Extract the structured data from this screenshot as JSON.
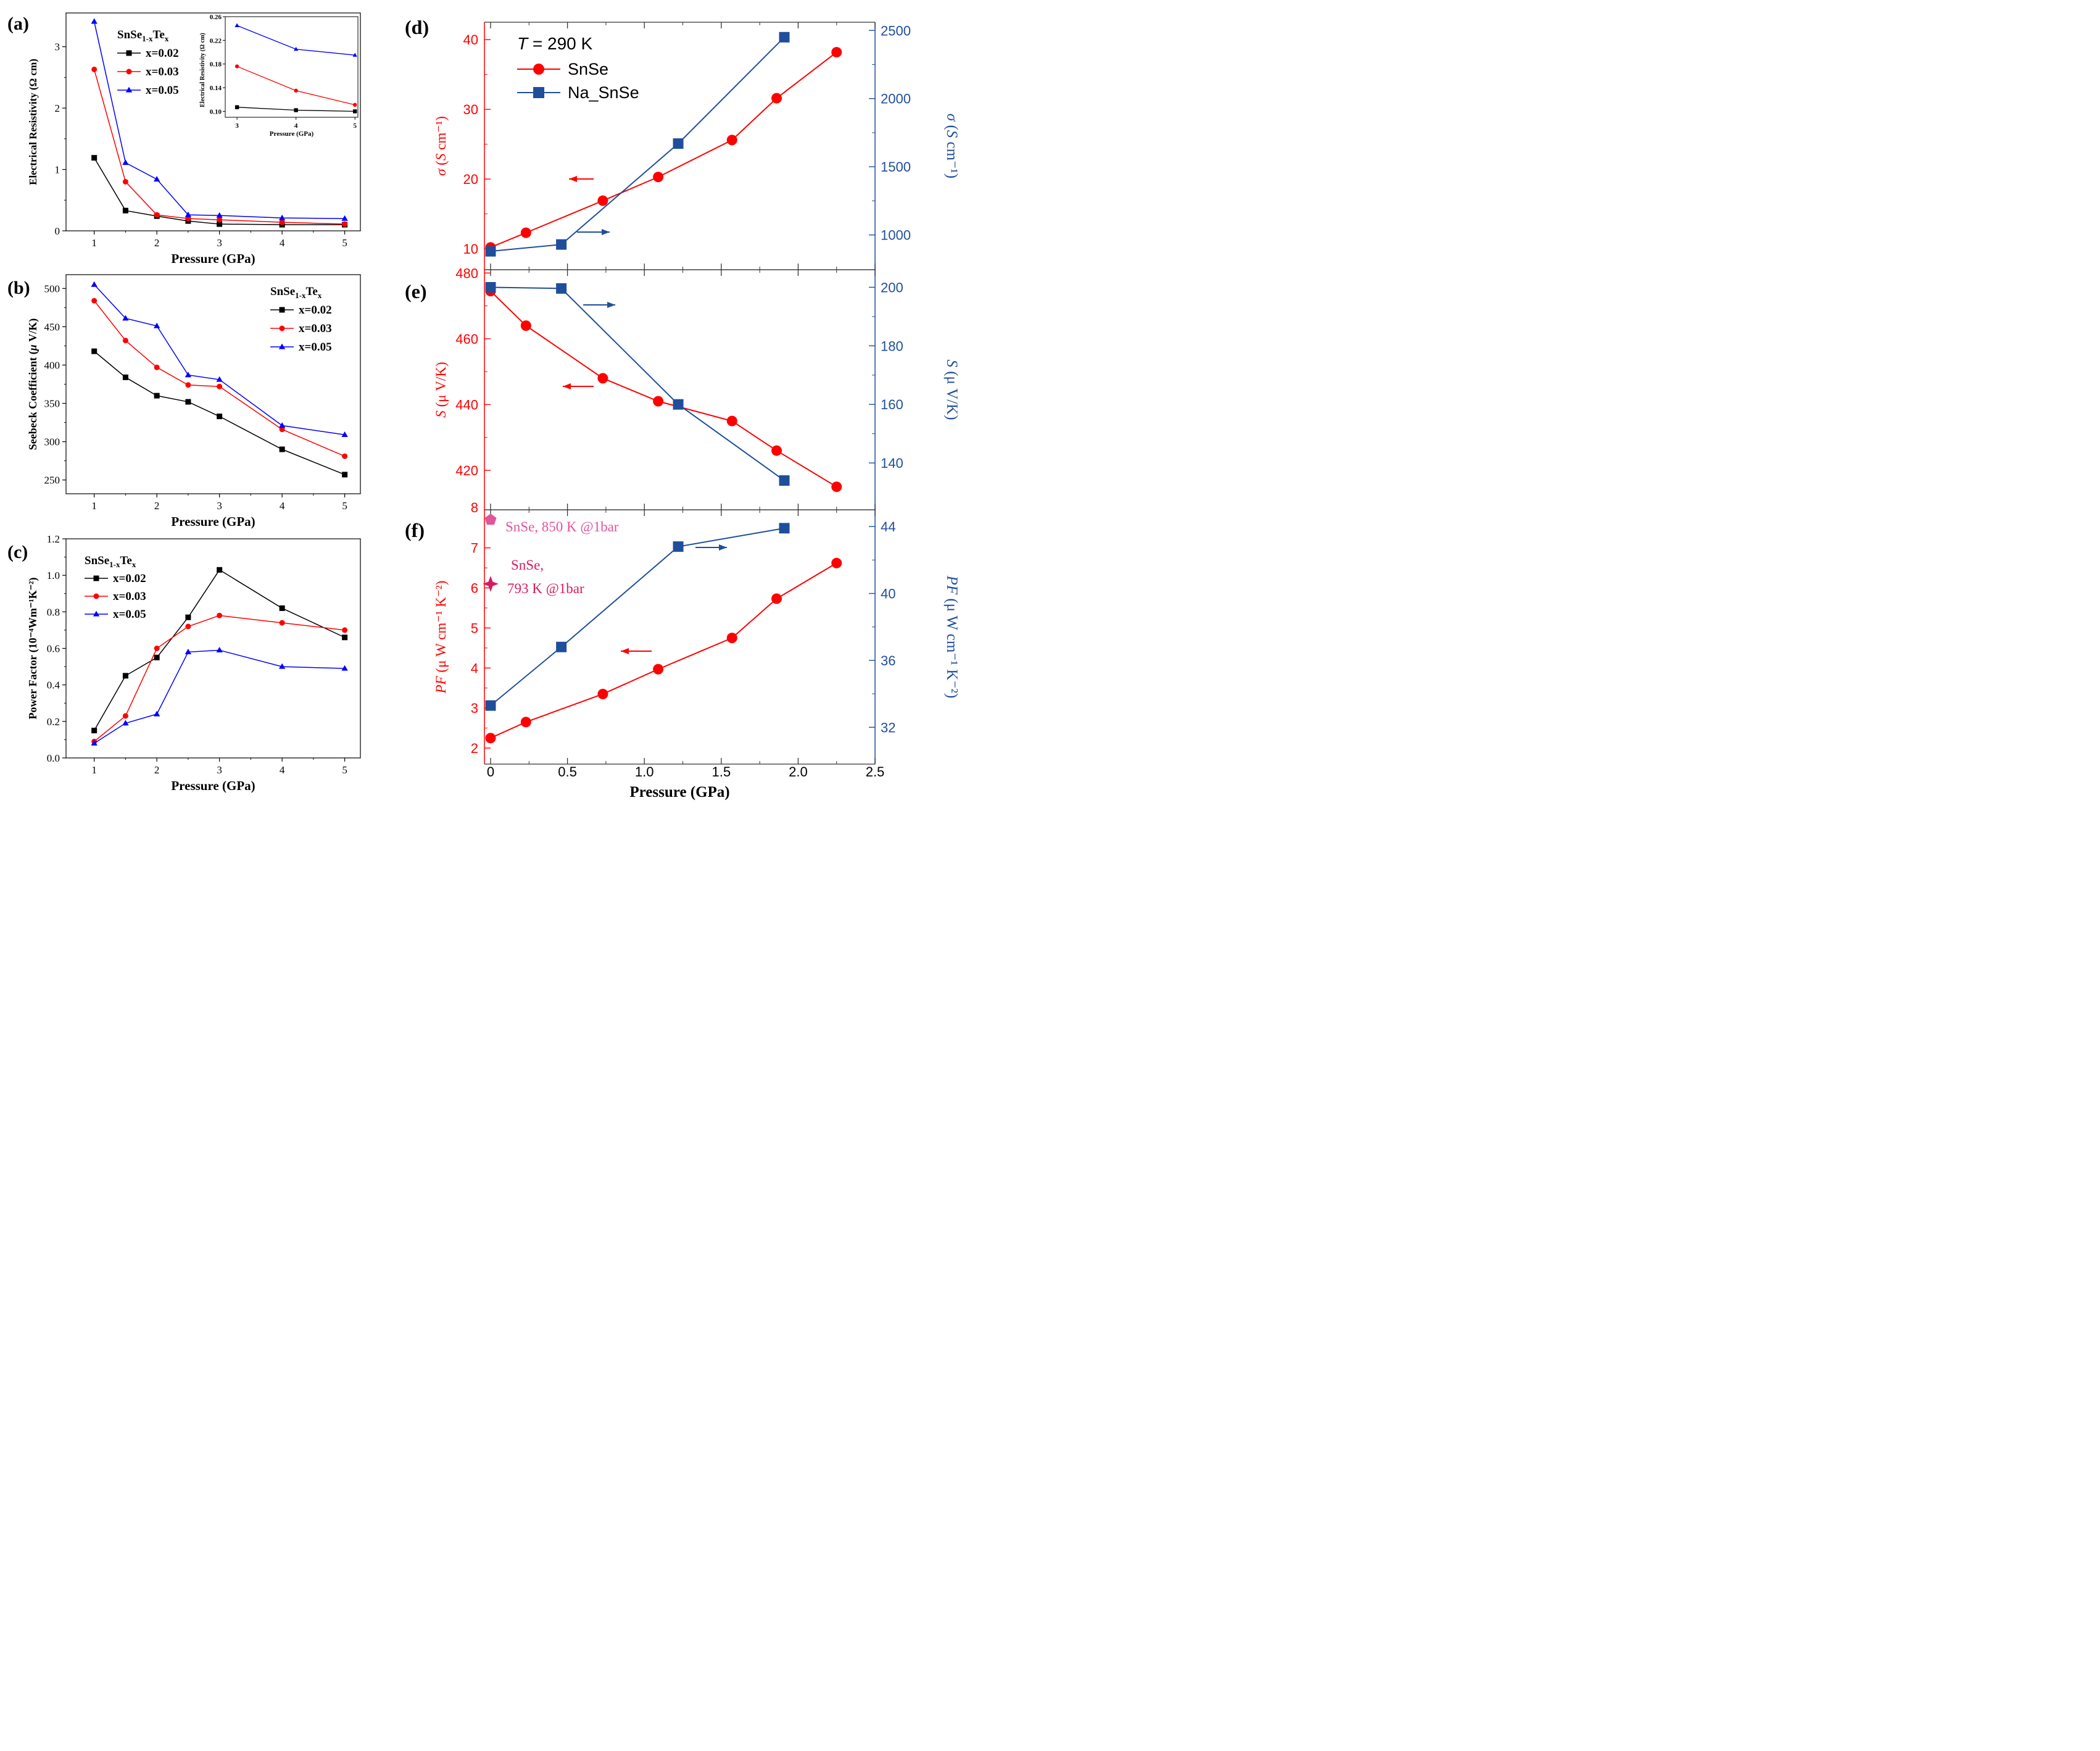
{
  "chart_data": [
    {
      "id": "a",
      "type": "line",
      "panel_label": "(a)",
      "xlabel": "Pressure (GPa)",
      "ylabel": "Electrical Resistivity  (Ω cm)",
      "xlim": [
        0.55,
        5.25
      ],
      "ylim": [
        0,
        3.55
      ],
      "xticks": [
        1,
        2,
        3,
        4,
        5
      ],
      "yticks": [
        0,
        1,
        2,
        3
      ],
      "legend_title_base": "SnSe",
      "legend_title_sub1": "1-x",
      "legend_title_mid": "Te",
      "legend_title_sub2": "x",
      "x": [
        1,
        1.5,
        2,
        2.5,
        3,
        4,
        5
      ],
      "series": [
        {
          "name": "x=0.02",
          "color": "#000000",
          "marker": "square",
          "values": [
            1.19,
            0.33,
            0.24,
            0.16,
            0.11,
            0.1,
            0.1
          ]
        },
        {
          "name": "x=0.03",
          "color": "#ff0000",
          "marker": "circle",
          "values": [
            2.63,
            0.8,
            0.26,
            0.2,
            0.18,
            0.14,
            0.11
          ]
        },
        {
          "name": "x=0.05",
          "color": "#0000ff",
          "marker": "triangle",
          "values": [
            3.41,
            1.11,
            0.84,
            0.26,
            0.25,
            0.21,
            0.2
          ]
        }
      ],
      "inset": {
        "xlabel": "Pressure  (GPa)",
        "ylabel": "Electrical Resistivity  (Ω cm)",
        "xlim": [
          2.8,
          5.05
        ],
        "ylim": [
          0.09,
          0.26
        ],
        "xticks": [
          3,
          4,
          5
        ],
        "yticks": [
          0.1,
          0.14,
          0.18,
          0.22,
          0.26
        ],
        "ytick_labels": [
          "0.10",
          "0.14",
          "0.18",
          "0.22",
          "0.26"
        ],
        "x": [
          3,
          4,
          5
        ],
        "series": [
          {
            "name": "x=0.02",
            "color": "#000000",
            "marker": "square",
            "values": [
              0.107,
              0.102,
              0.1
            ]
          },
          {
            "name": "x=0.03",
            "color": "#ff0000",
            "marker": "circle",
            "values": [
              0.176,
              0.135,
              0.111
            ]
          },
          {
            "name": "x=0.05",
            "color": "#0000ff",
            "marker": "triangle",
            "values": [
              0.245,
              0.205,
              0.195
            ]
          }
        ]
      }
    },
    {
      "id": "b",
      "type": "line",
      "panel_label": "(b)",
      "xlabel": "Pressure (GPa)",
      "ylabel_pre": "Seebeck Coefficient (",
      "ylabel_it": "μ",
      "ylabel_post": " V/K)",
      "xlim": [
        0.55,
        5.25
      ],
      "ylim": [
        232,
        518
      ],
      "xticks": [
        1,
        2,
        3,
        4,
        5
      ],
      "yticks": [
        250,
        300,
        350,
        400,
        450,
        500
      ],
      "legend_title_base": "SnSe",
      "legend_title_sub1": "1-x",
      "legend_title_mid": "Te",
      "legend_title_sub2": "x",
      "x": [
        1,
        1.5,
        2,
        2.5,
        3,
        4,
        5
      ],
      "series": [
        {
          "name": "x=0.02",
          "color": "#000000",
          "marker": "square",
          "values": [
            418,
            384,
            360,
            352,
            333,
            290,
            257
          ]
        },
        {
          "name": "x=0.03",
          "color": "#ff0000",
          "marker": "circle",
          "values": [
            484,
            432,
            397,
            374,
            372,
            316,
            281
          ]
        },
        {
          "name": "x=0.05",
          "color": "#0000ff",
          "marker": "triangle",
          "values": [
            505,
            461,
            451,
            387,
            381,
            321,
            309
          ]
        }
      ]
    },
    {
      "id": "c",
      "type": "line",
      "panel_label": "(c)",
      "xlabel": "Pressure (GPa)",
      "ylabel": "Power Factor  (10⁻⁴Wm⁻¹K⁻²)",
      "xlim": [
        0.55,
        5.25
      ],
      "ylim": [
        0,
        1.2
      ],
      "xticks": [
        1,
        2,
        3,
        4,
        5
      ],
      "yticks": [
        0.0,
        0.2,
        0.4,
        0.6,
        0.8,
        1.0,
        1.2
      ],
      "ytick_labels": [
        "0.0",
        "0.2",
        "0.4",
        "0.6",
        "0.8",
        "1.0",
        "1.2"
      ],
      "legend_title_base": "SnSe",
      "legend_title_sub1": "1-x",
      "legend_title_mid": "Te",
      "legend_title_sub2": "x",
      "x": [
        1,
        1.5,
        2,
        2.5,
        3,
        4,
        5
      ],
      "series": [
        {
          "name": "x=0.02",
          "color": "#000000",
          "marker": "square",
          "values": [
            0.15,
            0.45,
            0.55,
            0.77,
            1.03,
            0.82,
            0.66
          ]
        },
        {
          "name": "x=0.03",
          "color": "#ff0000",
          "marker": "circle",
          "values": [
            0.09,
            0.23,
            0.6,
            0.72,
            0.78,
            0.74,
            0.7
          ]
        },
        {
          "name": "x=0.05",
          "color": "#0000ff",
          "marker": "triangle",
          "values": [
            0.08,
            0.19,
            0.24,
            0.58,
            0.59,
            0.5,
            0.49
          ]
        }
      ]
    },
    {
      "id": "d",
      "type": "line",
      "panel_label": "(d)",
      "xlim": [
        -0.04,
        2.5
      ],
      "left_axis": {
        "label": "σ (S cm⁻¹)",
        "color": "#ff0000",
        "ylim": [
          7,
          42.5
        ],
        "yticks": [
          10,
          20,
          30,
          40
        ]
      },
      "right_axis": {
        "label": "σ (S cm⁻¹)",
        "color": "#1f4e9b",
        "ylim": [
          745,
          2560
        ],
        "yticks": [
          1000,
          1500,
          2000,
          2500
        ]
      },
      "annotation_T_italic": "T",
      "annotation_T_rest": " = 290 K",
      "series": [
        {
          "name": "SnSe",
          "axis": "left",
          "color": "#ff0000",
          "marker": "circle",
          "x": [
            0,
            0.23,
            0.73,
            1.09,
            1.57,
            1.86,
            2.25
          ],
          "values": [
            10.2,
            12.3,
            16.9,
            20.3,
            25.6,
            31.6,
            38.2
          ]
        },
        {
          "name": "Na_SnSe",
          "axis": "right",
          "color": "#1f4e9b",
          "marker": "square",
          "x": [
            0,
            0.46,
            1.22,
            1.91
          ],
          "values": [
            880,
            930,
            1670,
            2450
          ]
        }
      ]
    },
    {
      "id": "e",
      "type": "line",
      "panel_label": "(e)",
      "xlim": [
        -0.04,
        2.5
      ],
      "left_axis": {
        "label_it": "S",
        "label_rest": " (μ V/K)",
        "color": "#ff0000",
        "ylim": [
          408,
          481
        ],
        "yticks": [
          420,
          440,
          460,
          480
        ],
        "extra_tick_label": "8"
      },
      "right_axis": {
        "label_it": "S",
        "label_rest": " (μ V/K)",
        "color": "#1f4e9b",
        "ylim": [
          124,
          206
        ],
        "yticks": [
          140,
          160,
          180,
          200
        ]
      },
      "series": [
        {
          "name": "SnSe",
          "axis": "left",
          "color": "#ff0000",
          "marker": "circle",
          "x": [
            0,
            0.23,
            0.73,
            1.09,
            1.57,
            1.86,
            2.25
          ],
          "values": [
            474.5,
            464,
            448,
            441,
            435,
            426,
            415
          ]
        },
        {
          "name": "Na_SnSe",
          "axis": "right",
          "color": "#1f4e9b",
          "marker": "square",
          "x": [
            0,
            0.46,
            1.22,
            1.91
          ],
          "values": [
            200,
            199.6,
            160,
            134
          ]
        }
      ]
    },
    {
      "id": "f",
      "type": "line",
      "panel_label": "(f)",
      "xlabel": "Pressure (GPa)",
      "xlim": [
        -0.04,
        2.5
      ],
      "xticks": [
        0,
        0.5,
        1.0,
        1.5,
        2.0,
        2.5
      ],
      "xtick_labels": [
        "0",
        "0.5",
        "1.0",
        "1.5",
        "2.0",
        "2.5"
      ],
      "left_axis": {
        "label_it": "PF",
        "label_rest": " (μ W cm⁻¹ K⁻²)",
        "color": "#ff0000",
        "ylim": [
          1.6,
          7.95
        ],
        "yticks": [
          2,
          3,
          4,
          5,
          6,
          7
        ]
      },
      "right_axis": {
        "label_it": "PF",
        "label_rest": " (μ W cm⁻¹ K⁻²)",
        "color": "#1f4e9b",
        "ylim": [
          29.8,
          45
        ],
        "yticks": [
          32,
          36,
          40,
          44
        ]
      },
      "series": [
        {
          "name": "SnSe",
          "axis": "left",
          "color": "#ff0000",
          "marker": "circle",
          "x": [
            0,
            0.23,
            0.73,
            1.09,
            1.57,
            1.86,
            2.25
          ],
          "values": [
            2.25,
            2.65,
            3.35,
            3.97,
            4.75,
            5.73,
            6.62
          ]
        },
        {
          "name": "Na_SnSe",
          "axis": "right",
          "color": "#1f4e9b",
          "marker": "square",
          "x": [
            0,
            0.46,
            1.22,
            1.91
          ],
          "values": [
            33.3,
            36.8,
            42.8,
            43.9
          ]
        }
      ],
      "reference_points": [
        {
          "label": "SnSe, 850 K @1bar",
          "x": 0,
          "value": 7.7,
          "color": "#e0559b",
          "marker": "pentagon"
        },
        {
          "label_line1": "SnSe,",
          "label_line2": "793 K @1bar",
          "x": 0,
          "value": 6.1,
          "color": "#d81b60",
          "marker": "star"
        }
      ]
    }
  ]
}
